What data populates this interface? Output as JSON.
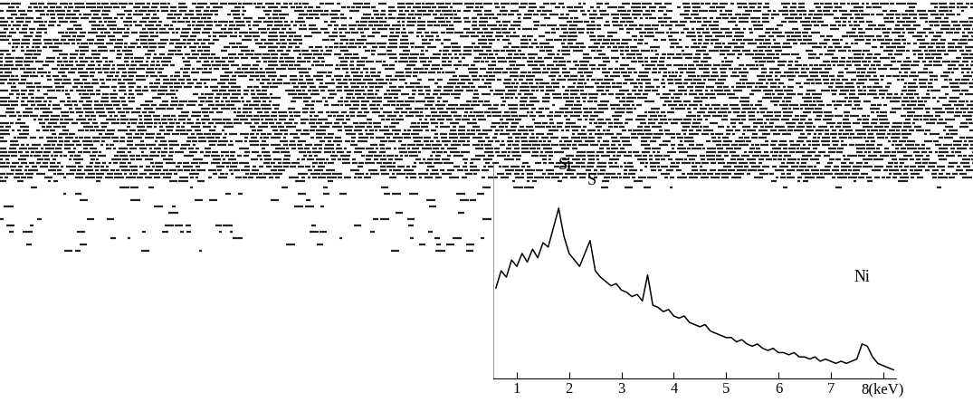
{
  "chart_data": {
    "type": "line",
    "x": [
      0.6,
      0.7,
      0.8,
      0.9,
      1.0,
      1.1,
      1.2,
      1.3,
      1.4,
      1.5,
      1.6,
      1.7,
      1.8,
      1.9,
      2.0,
      2.1,
      2.2,
      2.3,
      2.4,
      2.5,
      2.6,
      2.7,
      2.8,
      2.9,
      3.0,
      3.1,
      3.2,
      3.3,
      3.4,
      3.5,
      3.6,
      3.7,
      3.8,
      3.9,
      4.0,
      4.1,
      4.2,
      4.3,
      4.4,
      4.5,
      4.6,
      4.7,
      4.8,
      4.9,
      5.0,
      5.1,
      5.2,
      5.3,
      5.4,
      5.5,
      5.6,
      5.7,
      5.8,
      5.9,
      6.0,
      6.1,
      6.2,
      6.3,
      6.4,
      6.5,
      6.6,
      6.7,
      6.8,
      6.9,
      7.0,
      7.1,
      7.2,
      7.3,
      7.4,
      7.5,
      7.6,
      7.7,
      7.8,
      7.9,
      8.0,
      8.1,
      8.2
    ],
    "values": [
      42,
      50,
      47,
      55,
      52,
      58,
      54,
      60,
      56,
      63,
      61,
      70,
      79,
      66,
      58,
      55,
      52,
      58,
      64,
      50,
      47,
      45,
      43,
      44,
      41,
      40,
      38,
      39,
      36,
      48,
      34,
      33,
      31,
      32,
      29,
      28,
      29,
      26,
      25,
      24,
      25,
      22,
      21,
      20,
      19,
      19,
      17,
      18,
      16,
      15,
      16,
      14,
      13,
      14,
      12,
      12,
      11,
      12,
      10,
      10,
      9,
      10,
      8,
      9,
      8,
      7,
      8,
      7,
      8,
      9,
      16,
      15,
      10,
      7,
      6,
      5,
      4
    ],
    "color": "#000000",
    "xlim": [
      0.55,
      8.25
    ],
    "xticks": [
      1,
      2,
      3,
      4,
      5,
      6,
      7,
      {
        "value": 8,
        "label": "8(keV)"
      }
    ],
    "ylim": [
      0,
      100
    ],
    "yticks": [],
    "tick_labels": "x",
    "annotations": [
      {
        "text": "Si",
        "x": 1.8,
        "y": 99
      },
      {
        "text": "S",
        "x": 2.35,
        "y": 92
      },
      {
        "text": "Ni",
        "x": 7.45,
        "y": 47
      }
    ]
  }
}
